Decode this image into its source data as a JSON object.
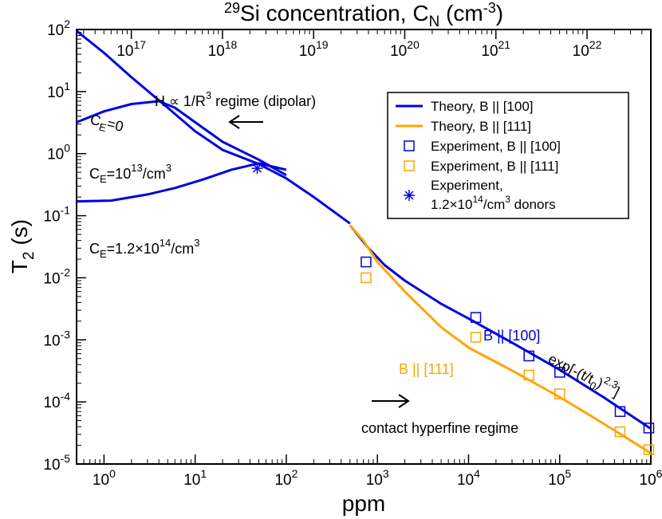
{
  "chart_data": {
    "type": "line",
    "xlabel": "ppm",
    "ylabel": "T",
    "ylabel_sub": "2",
    "ylabel_suffix": " (s)",
    "top_xlabel": {
      "sup": "29",
      "main": "Si concentration, C",
      "sub": "N",
      "unit": " (cm",
      "unit_sup": "-3",
      "close": ")"
    },
    "x_scale": "log",
    "y_scale": "log",
    "xlim": [
      0.5,
      1000000
    ],
    "ylim": [
      1e-05,
      100
    ],
    "x_ticks": [
      {
        "base": "10",
        "exp": "0"
      },
      {
        "base": "10",
        "exp": "1"
      },
      {
        "base": "10",
        "exp": "2"
      },
      {
        "base": "10",
        "exp": "3"
      },
      {
        "base": "10",
        "exp": "4"
      },
      {
        "base": "10",
        "exp": "5"
      },
      {
        "base": "10",
        "exp": "6"
      }
    ],
    "y_ticks": [
      {
        "base": "10",
        "exp": "2"
      },
      {
        "base": "10",
        "exp": "1"
      },
      {
        "base": "10",
        "exp": "0"
      },
      {
        "base": "10",
        "exp": "-1"
      },
      {
        "base": "10",
        "exp": "-2"
      },
      {
        "base": "10",
        "exp": "-3"
      },
      {
        "base": "10",
        "exp": "-4"
      },
      {
        "base": "10",
        "exp": "-5"
      }
    ],
    "top_ticks": [
      {
        "base": "10",
        "exp": "17"
      },
      {
        "base": "10",
        "exp": "18"
      },
      {
        "base": "10",
        "exp": "19"
      },
      {
        "base": "10",
        "exp": "20"
      },
      {
        "base": "10",
        "exp": "21"
      },
      {
        "base": "10",
        "exp": "22"
      }
    ],
    "series": [
      {
        "name": "Theory, B || [100]",
        "color": "#0000e0",
        "kind": "line",
        "curves": [
          {
            "x": [
              0.5,
              1,
              2,
              5,
              10,
              20,
              50,
              100,
              200,
              500
            ],
            "y": [
              95,
              42,
              17,
              5.5,
              2.3,
              1.15,
              0.68,
              0.4,
              0.2,
              0.075
            ]
          },
          {
            "x": [
              0.5,
              1,
              2,
              4,
              6,
              10,
              20,
              50,
              100
            ],
            "y": [
              3.2,
              4.8,
              6.3,
              7.0,
              5.5,
              3.2,
              1.55,
              0.8,
              0.45
            ]
          },
          {
            "x": [
              0.5,
              1.2,
              3,
              6,
              12,
              25,
              50,
              100
            ],
            "y": [
              0.17,
              0.175,
              0.22,
              0.28,
              0.38,
              0.55,
              0.7,
              0.55
            ]
          },
          {
            "x": [
              500,
              800,
              1200,
              2000,
              5000,
              10000,
              30000,
              100000,
              300000,
              1000000
            ],
            "y": [
              0.07,
              0.03,
              0.016,
              0.009,
              0.0038,
              0.0022,
              0.0009,
              0.00033,
              0.00012,
              3.7e-05
            ]
          }
        ]
      },
      {
        "name": "Theory, B || [111]",
        "color": "#ffa500",
        "kind": "line",
        "curves": [
          {
            "x": [
              500,
              700,
              1000,
              2000,
              5000,
              10000,
              30000,
              100000,
              300000,
              1000000
            ],
            "y": [
              0.07,
              0.04,
              0.018,
              0.006,
              0.0016,
              0.00075,
              0.00032,
              0.00012,
              4.5e-05,
              1.5e-05
            ]
          }
        ]
      },
      {
        "name": "Experiment, B || [100]",
        "color": "#0000e0",
        "kind": "square",
        "points": {
          "x": [
            750,
            12000,
            46000,
            100000,
            460000,
            950000
          ],
          "y": [
            0.018,
            0.0023,
            0.00055,
            0.0003,
            7e-05,
            3.8e-05
          ]
        }
      },
      {
        "name": "Experiment, B || [111]",
        "color": "#ffa500",
        "kind": "square",
        "points": {
          "x": [
            750,
            12000,
            46000,
            100000,
            460000,
            950000
          ],
          "y": [
            0.01,
            0.0011,
            0.00027,
            0.000135,
            3.3e-05,
            1.7e-05
          ]
        }
      },
      {
        "name": "Experiment,",
        "name_line2": {
          "pre": "1.2×10",
          "sup": "14",
          "post": "/cm",
          "sup2": "3",
          "tail": " donors"
        },
        "color": "#0000e0",
        "kind": "star",
        "points": {
          "x": [
            48
          ],
          "y": [
            0.58
          ]
        }
      }
    ],
    "annotations": {
      "dipolar": {
        "pre": "H ∝ 1/R",
        "sup": "3",
        "post": " regime (dipolar)"
      },
      "contact": "contact hyperfine regime",
      "ce0": {
        "pre": "C",
        "sub": "E",
        "post": "=0"
      },
      "ce13": {
        "pre": "C",
        "sub": "E",
        "post": "=10",
        "sup": "13",
        "post2": "/cm",
        "sup2": "3"
      },
      "ce14": {
        "pre": "C",
        "sub": "E",
        "post": "=1.2×10",
        "sup": "14",
        "post2": "/cm",
        "sup2": "3"
      },
      "b100": "B || [100]",
      "b111": "B || [111]",
      "exp_fit": {
        "pre": "exp[-(t/t",
        "sub": "0",
        "mid": ")",
        "sup": "2.3",
        "post": "]"
      }
    },
    "legend_position": "top-right",
    "grid": false
  }
}
